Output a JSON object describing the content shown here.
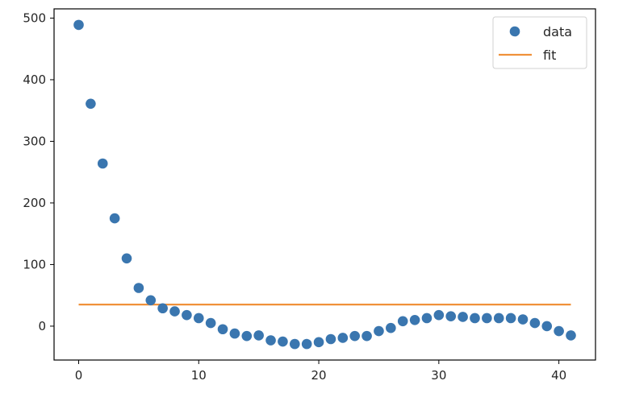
{
  "chart_data": {
    "type": "scatter",
    "title": "",
    "xlabel": "",
    "ylabel": "",
    "xlim": [
      -2.05,
      43.05
    ],
    "ylim": [
      -55,
      515
    ],
    "xticks": [
      0,
      10,
      20,
      30,
      40
    ],
    "yticks": [
      0,
      100,
      200,
      300,
      400,
      500
    ],
    "grid": false,
    "legend_position": "upper right",
    "series": [
      {
        "name": "data",
        "kind": "scatter",
        "color": "#3a76af",
        "x": [
          0,
          1,
          2,
          3,
          4,
          5,
          6,
          7,
          8,
          9,
          10,
          11,
          12,
          13,
          14,
          15,
          16,
          17,
          18,
          19,
          20,
          21,
          22,
          23,
          24,
          25,
          26,
          27,
          28,
          29,
          30,
          31,
          32,
          33,
          34,
          35,
          36,
          37,
          38,
          39,
          40,
          41
        ],
        "y": [
          489,
          361,
          264,
          175,
          110,
          62,
          42,
          29,
          24,
          18,
          13,
          5,
          -5,
          -12,
          -16,
          -15,
          -23,
          -25,
          -29,
          -29,
          -26,
          -21,
          -19,
          -16,
          -16,
          -8,
          -3,
          8,
          10,
          13,
          18,
          16,
          15,
          13,
          13,
          13,
          13,
          11,
          5,
          0,
          -8,
          -15
        ]
      },
      {
        "name": "fit",
        "kind": "line",
        "color": "#f0913a",
        "x": [
          0,
          41
        ],
        "y": [
          35,
          35
        ]
      }
    ]
  }
}
